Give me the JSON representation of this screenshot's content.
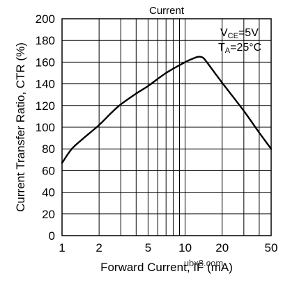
{
  "chart_data": {
    "type": "line",
    "title": "Current",
    "xlabel": "Forward Current, IF (mA)",
    "ylabel": "Current Transfer Ratio, CTR (%)",
    "x_scale": "log",
    "xlim": [
      1,
      50
    ],
    "ylim": [
      0,
      200
    ],
    "x_ticks": [
      1,
      2,
      5,
      10,
      20,
      50
    ],
    "x_minor_gridlines": [
      3,
      4,
      6,
      7,
      8,
      9,
      30,
      40
    ],
    "y_ticks": [
      0,
      20,
      40,
      60,
      80,
      100,
      120,
      140,
      160,
      180,
      200
    ],
    "grid": true,
    "annotations": [
      {
        "main": "V",
        "sub": "CE",
        "rest": "=5V"
      },
      {
        "main": "T",
        "sub": "A",
        "rest": "=25°C"
      }
    ],
    "watermark": "ubx8.com",
    "series": [
      {
        "x": [
          1,
          1.2,
          1.5,
          2,
          2.5,
          3,
          4,
          5,
          7,
          10,
          12,
          13,
          14,
          15,
          20,
          30,
          40,
          50
        ],
        "y": [
          67,
          80,
          90,
          102,
          113,
          121,
          131,
          138,
          150,
          160,
          164,
          165,
          164,
          160,
          141,
          115,
          95,
          80
        ]
      }
    ]
  }
}
